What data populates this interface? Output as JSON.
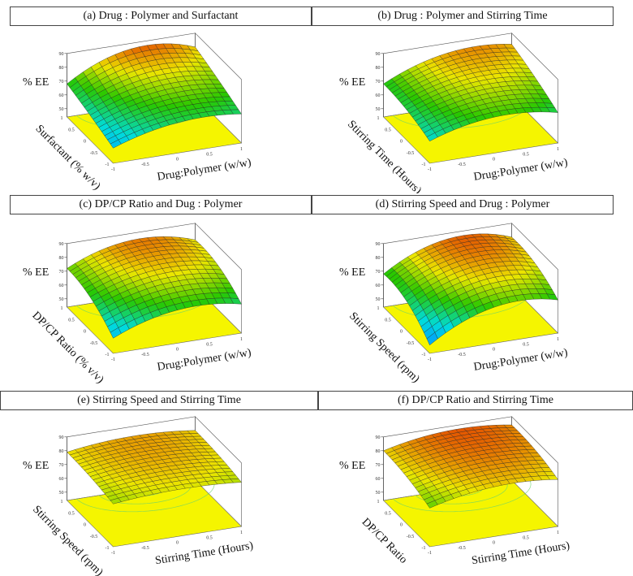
{
  "chart_data": [
    {
      "type": "surface3d",
      "title": "(a) Drug : Polymer and Surfactant",
      "zlabel": "% EE",
      "xlabel": "Drug:Polymer (w/w)",
      "ylabel": "Surfactant (% w/v)",
      "xlim": [
        -1,
        1
      ],
      "ylim": [
        -1,
        1
      ],
      "zlim": [
        50,
        90
      ],
      "xticks": [
        "-1",
        "-0.5",
        "0",
        "0.5",
        "1"
      ],
      "yticks": [
        "-1",
        "-0.5",
        "0",
        "0.5",
        "1"
      ],
      "zticks": [
        "50",
        "60",
        "70",
        "80",
        "90"
      ],
      "grid_x": [
        -1,
        0,
        1
      ],
      "grid_y": [
        -1,
        0,
        1
      ],
      "z": [
        [
          55,
          66,
          65
        ],
        [
          62,
          75,
          73
        ],
        [
          68,
          86,
          80
        ]
      ]
    },
    {
      "type": "surface3d",
      "title": "(b) Drug : Polymer and Stirring Time",
      "zlabel": "% EE",
      "xlabel": "Drug:Polymer (w/w)",
      "ylabel": "Stirring Time (Hours)",
      "xlim": [
        -1,
        1
      ],
      "ylim": [
        -1,
        1
      ],
      "zlim": [
        50,
        90
      ],
      "xticks": [
        "-1",
        "-0.5",
        "0",
        "0.5",
        "1"
      ],
      "yticks": [
        "-1",
        "-0.5",
        "0",
        "0.5",
        "1"
      ],
      "zticks": [
        "50",
        "60",
        "70",
        "80",
        "90"
      ],
      "grid_x": [
        -1,
        0,
        1
      ],
      "grid_y": [
        -1,
        0,
        1
      ],
      "z": [
        [
          60,
          70,
          66
        ],
        [
          66,
          78,
          75
        ],
        [
          68,
          83,
          82
        ]
      ]
    },
    {
      "type": "surface3d",
      "title": "(c) DP/CP Ratio and Dug : Polymer",
      "zlabel": "% EE",
      "xlabel": "Drug:Polymer (w/w)",
      "ylabel": "DP/CP Ratio (% v/v)",
      "xlim": [
        -1,
        1
      ],
      "ylim": [
        -1,
        1
      ],
      "zlim": [
        50,
        90
      ],
      "xticks": [
        "-1",
        "-0.5",
        "0",
        "0.5",
        "1"
      ],
      "yticks": [
        "-1",
        "-0.5",
        "0",
        "0.5",
        "1"
      ],
      "zticks": [
        "50",
        "60",
        "70",
        "80",
        "90"
      ],
      "grid_x": [
        -1,
        0,
        1
      ],
      "grid_y": [
        -1,
        0,
        1
      ],
      "z": [
        [
          55,
          68,
          65
        ],
        [
          68,
          80,
          76
        ],
        [
          72,
          85,
          78
        ]
      ]
    },
    {
      "type": "surface3d",
      "title": "(d) Stirring Speed and Drug : Polymer",
      "zlabel": "% EE",
      "xlabel": "Drug:Polymer (w/w)",
      "ylabel": "Stirring Speed (rpm)",
      "xlim": [
        -1,
        1
      ],
      "ylim": [
        -1,
        1
      ],
      "zlim": [
        50,
        90
      ],
      "xticks": [
        "-1",
        "-0.5",
        "0",
        "0.5",
        "1"
      ],
      "yticks": [
        "-1",
        "-0.5",
        "0",
        "0.5",
        "1"
      ],
      "zticks": [
        "50",
        "60",
        "70",
        "80",
        "90"
      ],
      "grid_x": [
        -1,
        0,
        1
      ],
      "grid_y": [
        -1,
        0,
        1
      ],
      "z": [
        [
          50,
          70,
          68
        ],
        [
          65,
          82,
          78
        ],
        [
          68,
          86,
          80
        ]
      ]
    },
    {
      "type": "surface3d",
      "title": "(e) Stirring Speed and Stirring Time",
      "zlabel": "% EE",
      "xlabel": "Stirring Time (Hours)",
      "ylabel": "Stirring Speed (rpm)",
      "xlim": [
        -1,
        1
      ],
      "ylim": [
        -1,
        1
      ],
      "zlim": [
        50,
        90
      ],
      "xticks": [
        "-1",
        "-0.5",
        "0",
        "0.5",
        "1"
      ],
      "yticks": [
        "-1",
        "-0.5",
        "0",
        "0.5",
        "1"
      ],
      "zticks": [
        "50",
        "60",
        "70",
        "80",
        "90"
      ],
      "grid_x": [
        -1,
        0,
        1
      ],
      "grid_y": [
        -1,
        0,
        1
      ],
      "z": [
        [
          75,
          78,
          76
        ],
        [
          78,
          82,
          79
        ],
        [
          79,
          83,
          80
        ]
      ]
    },
    {
      "type": "surface3d",
      "title": "(f) DP/CP Ratio and Stirring Time",
      "zlabel": "% EE",
      "xlabel": "Stirring Time (Hours)",
      "ylabel": "DP/CP Ratio",
      "xlim": [
        -1,
        1
      ],
      "ylim": [
        -1,
        1
      ],
      "zlim": [
        50,
        90
      ],
      "xticks": [
        "-1",
        "-0.5",
        "0",
        "0.5",
        "1"
      ],
      "yticks": [
        "-1",
        "-0.5",
        "0",
        "0.5",
        "1"
      ],
      "zticks": [
        "50",
        "60",
        "70",
        "80",
        "90"
      ],
      "grid_x": [
        -1,
        0,
        1
      ],
      "grid_y": [
        -1,
        0,
        1
      ],
      "z": [
        [
          72,
          80,
          78
        ],
        [
          78,
          85,
          83
        ],
        [
          80,
          87,
          84
        ]
      ]
    }
  ],
  "colors": {
    "floor": "#f5f500",
    "low": "#00a0ff",
    "mid": "#00c800",
    "high": "#e02800"
  }
}
